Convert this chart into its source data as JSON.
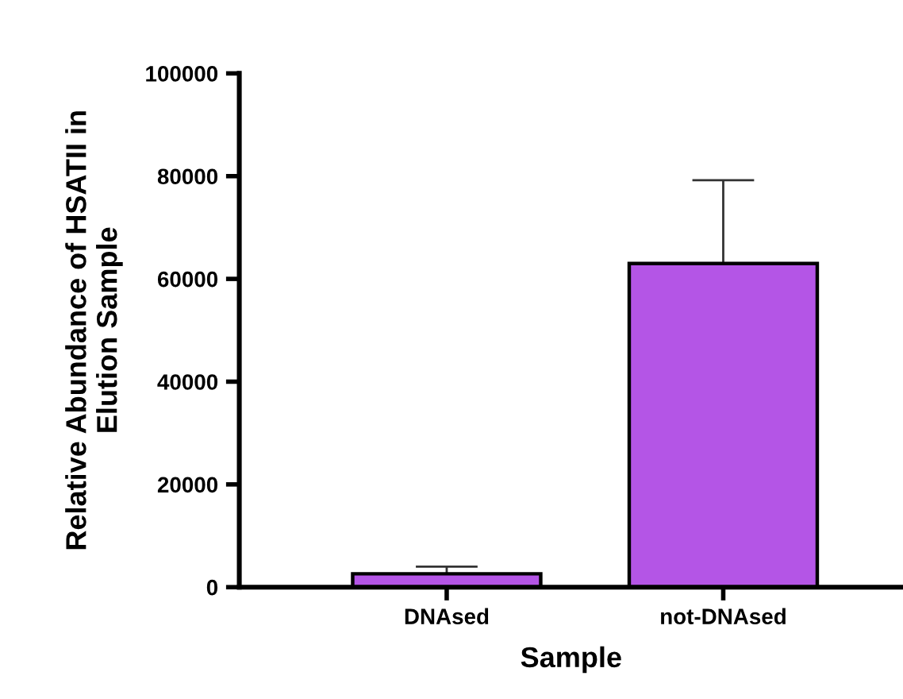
{
  "chart_data": {
    "type": "bar",
    "xlabel": "Sample",
    "ylabel": "Relative Abundance of HSATII in\nElution Sample",
    "categories": [
      "DNAsed",
      "not-DNAsed"
    ],
    "values": [
      2600,
      63000
    ],
    "errors": [
      [
        2600,
        4000
      ],
      [
        63000,
        79200
      ]
    ],
    "color": "#b455e6",
    "ylim": [
      0,
      100000
    ],
    "yticks": [
      0,
      20000,
      40000,
      60000,
      80000,
      100000
    ],
    "grid": false
  }
}
